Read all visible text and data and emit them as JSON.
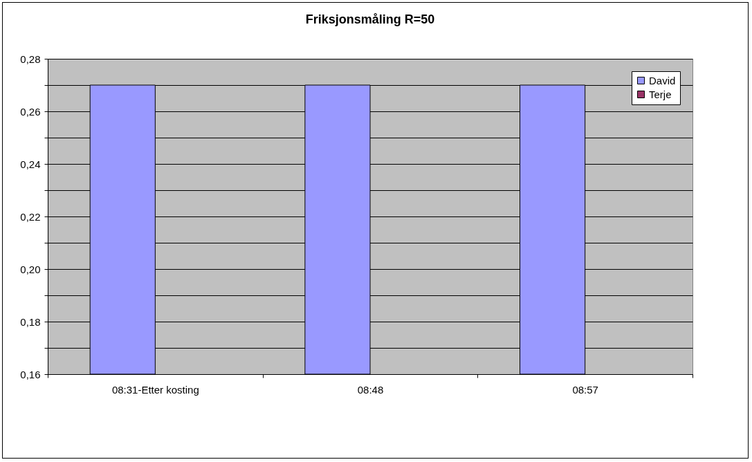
{
  "chart_data": {
    "type": "bar",
    "title": "Friksjonsmåling R=50",
    "categories": [
      "08:31-Etter kosting",
      "08:48",
      "08:57"
    ],
    "series": [
      {
        "name": "David",
        "color": "#9999ff",
        "values": [
          0.27,
          0.27,
          0.27
        ]
      },
      {
        "name": "Terje",
        "color": "#993366",
        "values": [
          null,
          null,
          null
        ]
      }
    ],
    "ylim": [
      0.16,
      0.28
    ],
    "yticks": [
      {
        "value": 0.16,
        "label": "0,16"
      },
      {
        "value": 0.17,
        "label": null
      },
      {
        "value": 0.18,
        "label": "0,18"
      },
      {
        "value": 0.19,
        "label": null
      },
      {
        "value": 0.2,
        "label": "0,20"
      },
      {
        "value": 0.21,
        "label": null
      },
      {
        "value": 0.22,
        "label": "0,22"
      },
      {
        "value": 0.23,
        "label": null
      },
      {
        "value": 0.24,
        "label": "0,24"
      },
      {
        "value": 0.25,
        "label": null
      },
      {
        "value": 0.26,
        "label": "0,26"
      },
      {
        "value": 0.27,
        "label": null
      },
      {
        "value": 0.28,
        "label": "0,28"
      }
    ],
    "grid": "y",
    "legend": "top right"
  }
}
